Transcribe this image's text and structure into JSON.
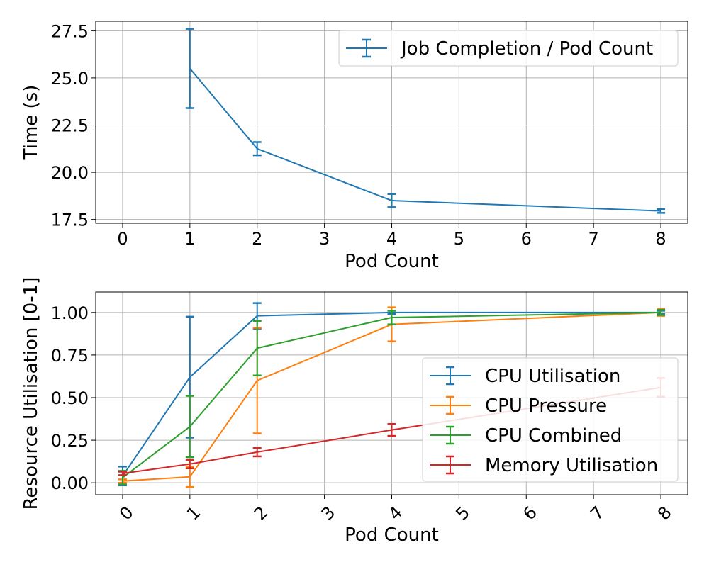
{
  "chart_data": [
    {
      "type": "line",
      "xlabel": "Pod Count",
      "ylabel": "Time (s)",
      "xlim": [
        -0.4,
        8.4
      ],
      "ylim": [
        17.3,
        28.0
      ],
      "xticks": [
        "0",
        "1",
        "2",
        "3",
        "4",
        "5",
        "6",
        "7",
        "8"
      ],
      "yticks": [
        "17.5",
        "20.0",
        "22.5",
        "25.0",
        "27.5"
      ],
      "grid": true,
      "legend_position": "top-right",
      "series": [
        {
          "name": "Job Completion / Pod Count",
          "color": "#1f77b4",
          "x": [
            1,
            2,
            4,
            8
          ],
          "y": [
            25.5,
            21.25,
            18.5,
            17.95
          ],
          "yerr": [
            2.1,
            0.35,
            0.35,
            0.1
          ]
        }
      ]
    },
    {
      "type": "line",
      "xlabel": "Pod Count",
      "ylabel": "Resource Utilisation [0-1]",
      "xlim": [
        -0.4,
        8.4
      ],
      "ylim": [
        -0.07,
        1.12
      ],
      "xticks": [
        "0",
        "1",
        "2",
        "3",
        "4",
        "5",
        "6",
        "7",
        "8"
      ],
      "xtick_rotation": 45,
      "yticks": [
        "0.00",
        "0.25",
        "0.50",
        "0.75",
        "1.00"
      ],
      "grid": true,
      "legend_position": "bottom-right",
      "series": [
        {
          "name": "CPU Utilisation",
          "color": "#1f77b4",
          "x": [
            0,
            1,
            2,
            4,
            8
          ],
          "y": [
            0.04,
            0.62,
            0.98,
            1.0,
            1.0
          ],
          "yerr": [
            0.055,
            0.355,
            0.075,
            0.01,
            0.01
          ]
        },
        {
          "name": "CPU Pressure",
          "color": "#ff7f0e",
          "x": [
            0,
            1,
            2,
            4,
            8
          ],
          "y": [
            0.01,
            0.035,
            0.6,
            0.93,
            1.0
          ],
          "yerr": [
            0.01,
            0.06,
            0.31,
            0.1,
            0.02
          ]
        },
        {
          "name": "CPU Combined",
          "color": "#2ca02c",
          "x": [
            0,
            1,
            2,
            4,
            8
          ],
          "y": [
            0.03,
            0.33,
            0.79,
            0.97,
            1.0
          ],
          "yerr": [
            0.04,
            0.18,
            0.16,
            0.04,
            0.015
          ]
        },
        {
          "name": "Memory Utilisation",
          "color": "#d62728",
          "x": [
            0,
            1,
            2,
            4,
            8
          ],
          "y": [
            0.055,
            0.11,
            0.18,
            0.31,
            0.56
          ],
          "yerr": [
            0.01,
            0.025,
            0.025,
            0.035,
            0.055
          ]
        }
      ]
    }
  ]
}
